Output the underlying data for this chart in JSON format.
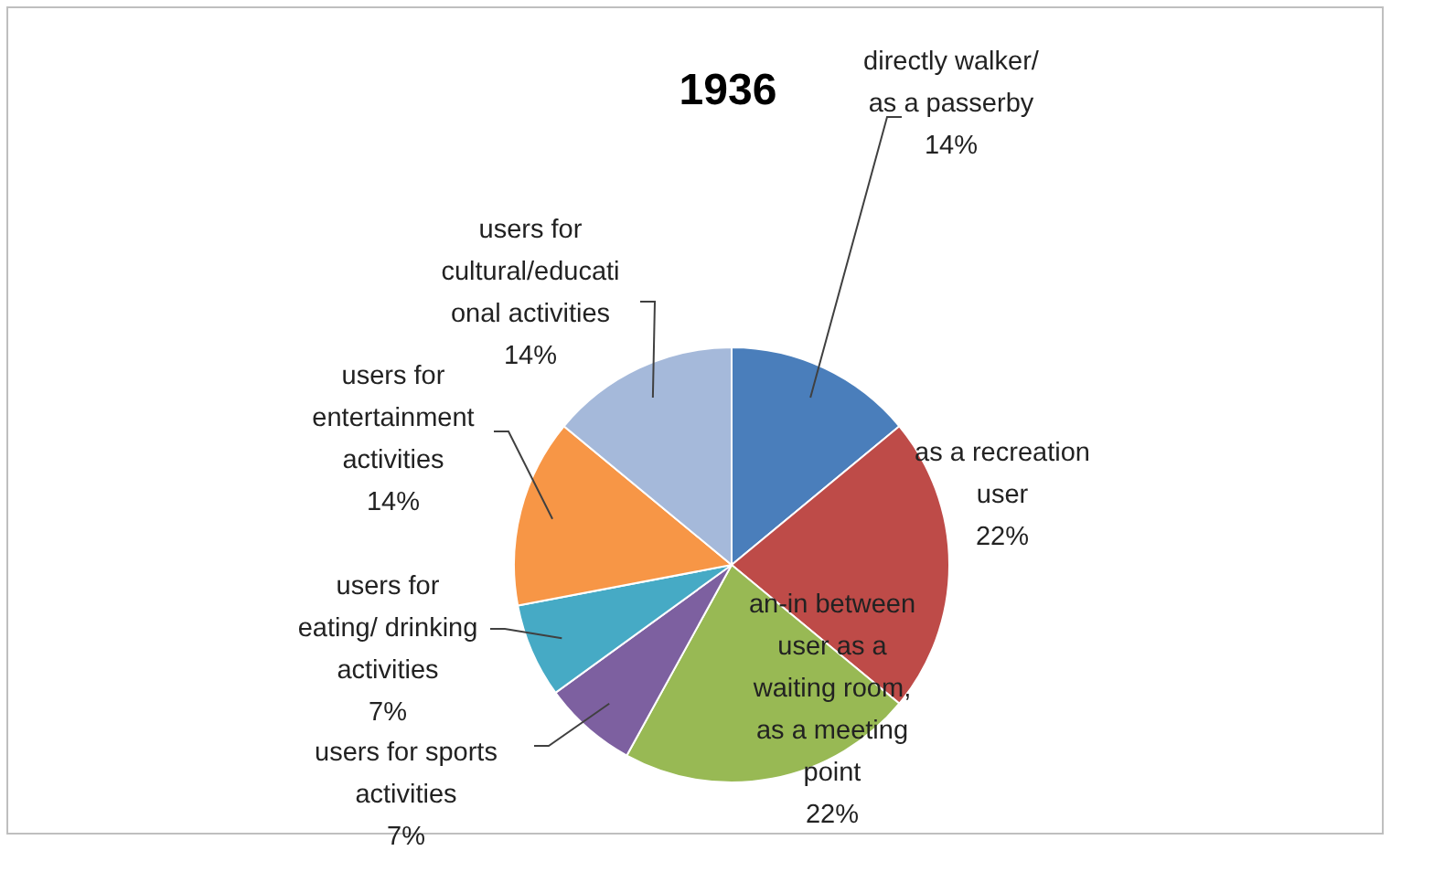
{
  "chart_data": {
    "type": "pie",
    "title": "1936",
    "categories": [
      "directly walker/\nas a passerby",
      "as a recreation\nuser",
      "an-in between\nuser as a\nwaiting room,\nas a meeting\npoint",
      "users for sports\nactivities",
      "users for\neating/ drinking\nactivities",
      "users for\nentertainment\nactivities",
      "users for\ncultural/educati\nonal activities"
    ],
    "values": [
      14,
      22,
      22,
      7,
      7,
      14,
      14
    ],
    "value_labels": [
      "14%",
      "22%",
      "22%",
      "7%",
      "7%",
      "14%",
      "14%"
    ],
    "colors": [
      "#4a7ebb",
      "#be4b48",
      "#98b954",
      "#7d60a0",
      "#46aac5",
      "#f79646",
      "#a5b9da"
    ]
  }
}
